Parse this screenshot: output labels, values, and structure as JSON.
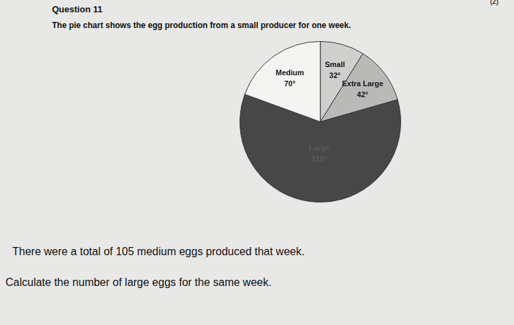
{
  "document": {
    "heading": "Question 11",
    "marks": "(2)",
    "intro": "The pie chart shows the egg production from a small producer for one week.",
    "lines": [
      "There were a total of 105 medium eggs produced that week.",
      "Calculate the number of large eggs for the same week."
    ]
  },
  "chart_data": {
    "type": "pie",
    "categories": [
      "Small",
      "Extra Large",
      "Large",
      "Medium"
    ],
    "values": [
      32,
      42,
      216,
      70
    ],
    "value_labels": [
      "32°",
      "42°",
      "216°",
      "70°"
    ],
    "colors": [
      "#cfcfcd",
      "#b9b9b7",
      "#474747",
      "#f4f4f2"
    ],
    "data_labels": true
  }
}
